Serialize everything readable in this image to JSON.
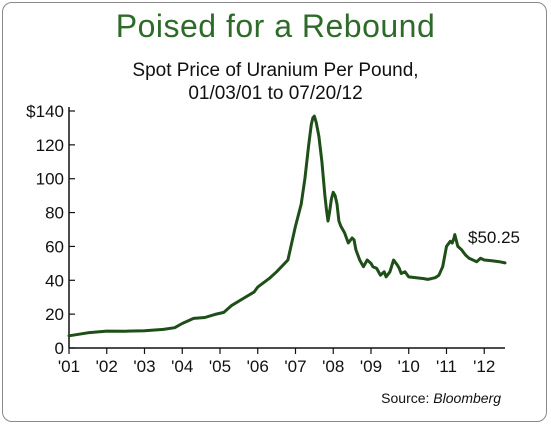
{
  "chart_data": {
    "type": "line",
    "title": "Poised for a Rebound",
    "subtitle_line1": "Spot Price of Uranium Per Pound,",
    "subtitle_line2": "01/03/01 to 07/20/12",
    "xlabel": "",
    "ylabel": "",
    "x_tick_labels": [
      "'01",
      "'02",
      "'03",
      "'04",
      "'05",
      "'06",
      "'07",
      "'08",
      "'09",
      "'10",
      "'11",
      "'12"
    ],
    "y_tick_labels": [
      "0",
      "20",
      "40",
      "60",
      "80",
      "100",
      "120",
      "$140"
    ],
    "y_ticks": [
      0,
      20,
      40,
      60,
      80,
      100,
      120,
      140
    ],
    "xlim": [
      2001.0,
      2012.55
    ],
    "ylim": [
      0,
      140
    ],
    "grid": false,
    "line_color": "#1f4f18",
    "end_label": "$50.25",
    "source_prefix": "Source: ",
    "source_name": "Bloomberg",
    "series": [
      {
        "x": [
          2001.0,
          2001.5,
          2002.0,
          2002.5,
          2003.0,
          2003.5,
          2003.8,
          2004.0,
          2004.3,
          2004.6,
          2004.9,
          2005.1,
          2005.3,
          2005.6,
          2005.9,
          2006.0,
          2006.3,
          2006.5,
          2006.8,
          2007.0,
          2007.15,
          2007.25,
          2007.35,
          2007.42,
          2007.46,
          2007.5,
          2007.55,
          2007.62,
          2007.7,
          2007.78,
          2007.82,
          2007.86,
          2007.9,
          2007.95,
          2008.0,
          2008.05,
          2008.1,
          2008.15,
          2008.2,
          2008.3,
          2008.4,
          2008.5,
          2008.55,
          2008.6,
          2008.65,
          2008.7,
          2008.8,
          2008.9,
          2009.0,
          2009.05,
          2009.15,
          2009.25,
          2009.35,
          2009.4,
          2009.5,
          2009.6,
          2009.7,
          2009.75,
          2009.8,
          2009.9,
          2010.0,
          2010.2,
          2010.4,
          2010.5,
          2010.6,
          2010.7,
          2010.8,
          2010.9,
          2011.0,
          2011.1,
          2011.15,
          2011.2,
          2011.22,
          2011.3,
          2011.4,
          2011.5,
          2011.6,
          2011.7,
          2011.8,
          2011.9,
          2012.0,
          2012.2,
          2012.4,
          2012.55
        ],
        "y": [
          7.2,
          9.0,
          10.0,
          9.9,
          10.2,
          11.0,
          12.0,
          14.5,
          17.5,
          18.0,
          20.0,
          21.0,
          25.0,
          29.0,
          33.0,
          36.0,
          41.0,
          45.0,
          52.0,
          72.0,
          85.0,
          100.0,
          120.0,
          132.0,
          136.0,
          137.0,
          133.0,
          125.0,
          110.0,
          90.0,
          82.0,
          75.0,
          80.0,
          88.0,
          92.0,
          90.0,
          85.0,
          75.0,
          72.0,
          68.0,
          62.0,
          65.0,
          64.0,
          58.0,
          55.0,
          52.0,
          48.0,
          52.0,
          50.0,
          48.0,
          47.0,
          43.0,
          45.0,
          42.0,
          45.0,
          52.0,
          49.0,
          47.0,
          44.0,
          45.0,
          42.0,
          41.5,
          41.0,
          40.5,
          41.0,
          41.5,
          43.0,
          48.0,
          60.0,
          63.0,
          62.0,
          65.0,
          67.0,
          60.0,
          58.0,
          55.0,
          53.0,
          52.0,
          51.0,
          53.0,
          52.0,
          51.5,
          51.0,
          50.25
        ]
      }
    ]
  }
}
